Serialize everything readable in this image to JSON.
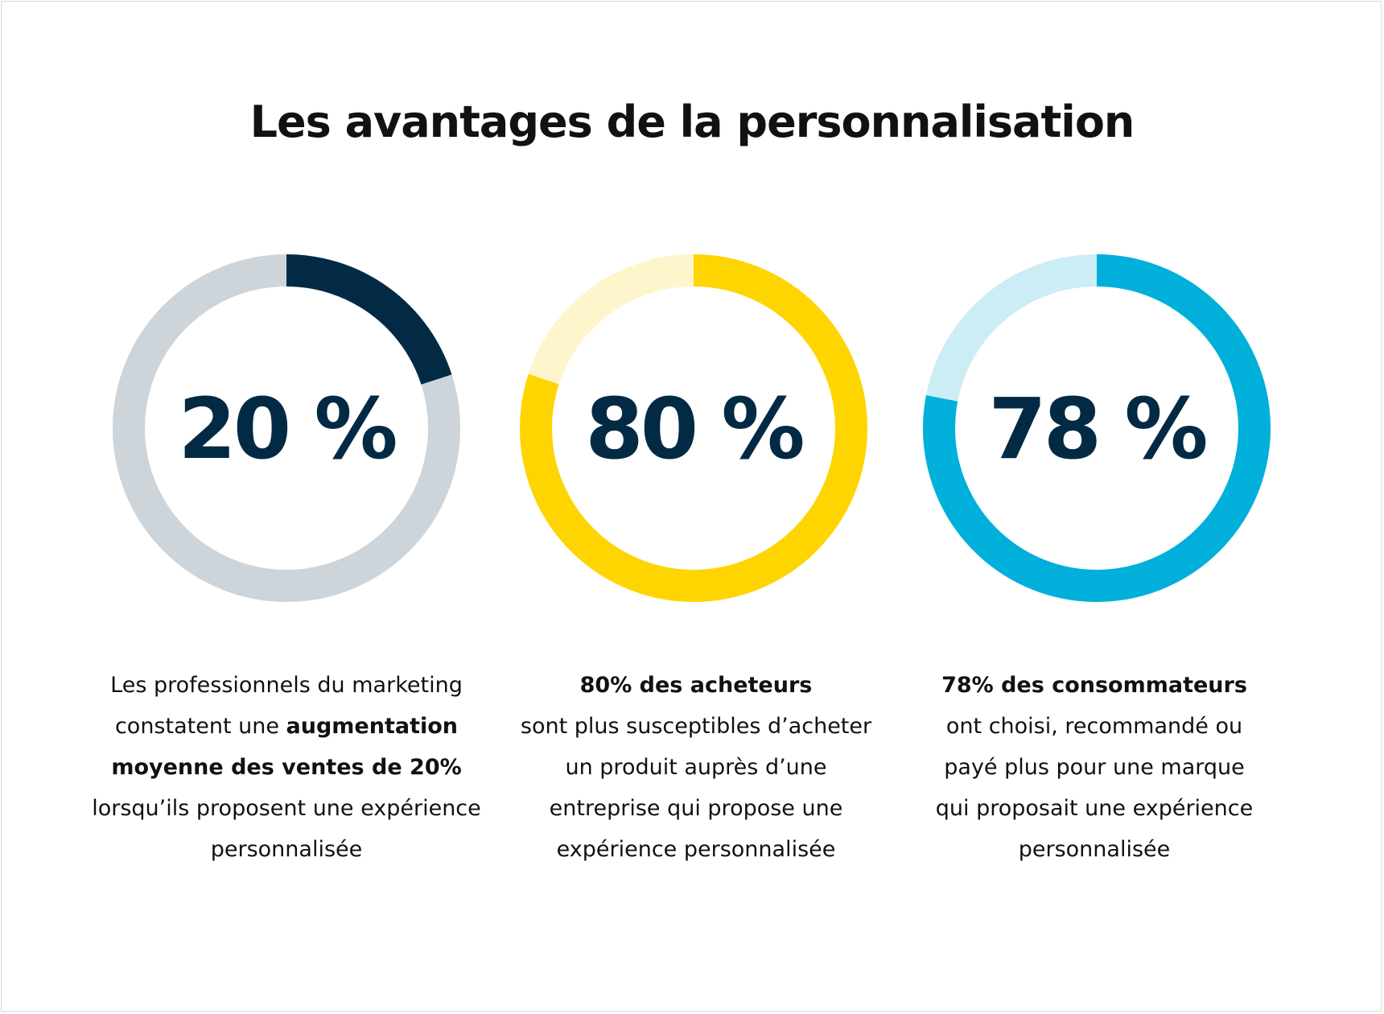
{
  "title": "Les avantages de la personnalisation",
  "chart_data": {
    "type": "pie",
    "variant": "donut",
    "title": "Les avantages de la personnalisation",
    "items": [
      {
        "value": 20,
        "label": "20 %",
        "color": "#032a44",
        "track_color": "#cdd4da",
        "text_bold_1": "",
        "text_1": "Les professionnels du marketing constatent une ",
        "text_bold_2": "augmentation moyenne des ventes de 20%",
        "text_2": " lorsqu’ils proposent une expérience personnalisée"
      },
      {
        "value": 80,
        "label": "80 %",
        "color": "#fed500",
        "track_color": "#fff5cc",
        "text_bold_1": "80% des acheteurs",
        "text_1": " sont plus susceptibles d’acheter un produit auprès d’une entreprise qui propose une expérience personnalisée",
        "text_bold_2": "",
        "text_2": ""
      },
      {
        "value": 78,
        "label": "78 %",
        "color": "#00b0da",
        "track_color": "#ccedf6",
        "text_bold_1": "78% des consommateurs",
        "text_1": " ont choisi, recommandé ou payé plus pour une marque qui proposait une expérience personnalisée",
        "text_bold_2": "",
        "text_2": ""
      }
    ]
  }
}
